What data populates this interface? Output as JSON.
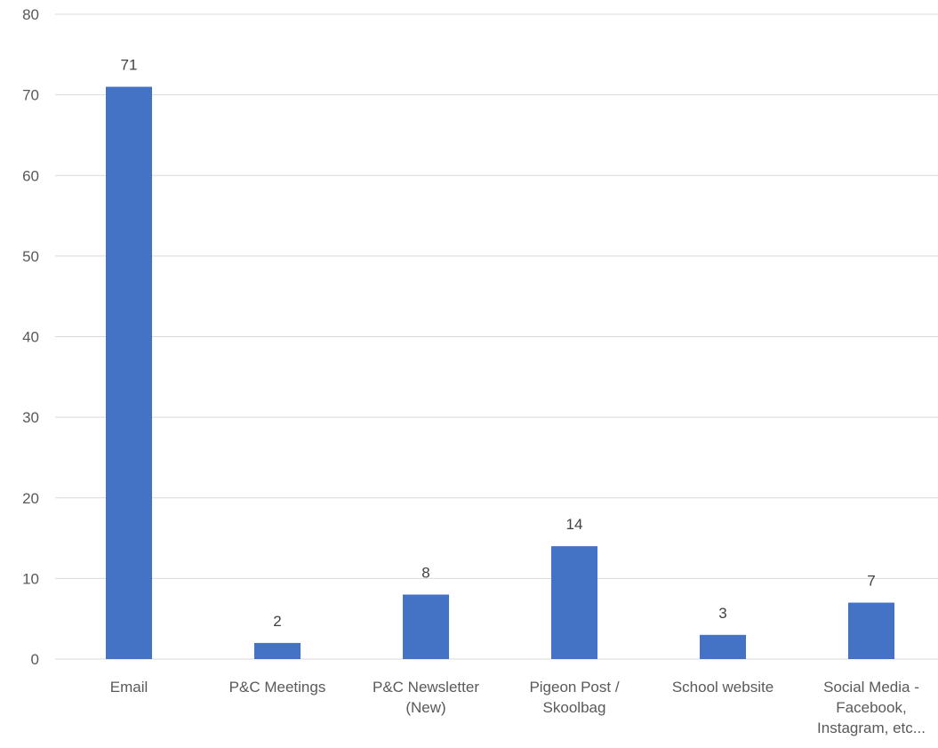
{
  "chart_data": {
    "type": "bar",
    "title": "",
    "xlabel": "",
    "ylabel": "",
    "categories": [
      [
        "Email"
      ],
      [
        "P&C Meetings"
      ],
      [
        "P&C Newsletter",
        "(New)"
      ],
      [
        "Pigeon Post /",
        "Skoolbag"
      ],
      [
        "School website"
      ],
      [
        "Social Media -",
        "Facebook,",
        "Instagram, etc..."
      ]
    ],
    "values": [
      71,
      2,
      8,
      14,
      3,
      7
    ],
    "ylim": [
      0,
      80
    ],
    "yticks": [
      0,
      10,
      20,
      30,
      40,
      50,
      60,
      70,
      80
    ],
    "grid": true,
    "legend": "none",
    "bar_color": "#4472c4",
    "grid_color": "#d9d9d9"
  }
}
